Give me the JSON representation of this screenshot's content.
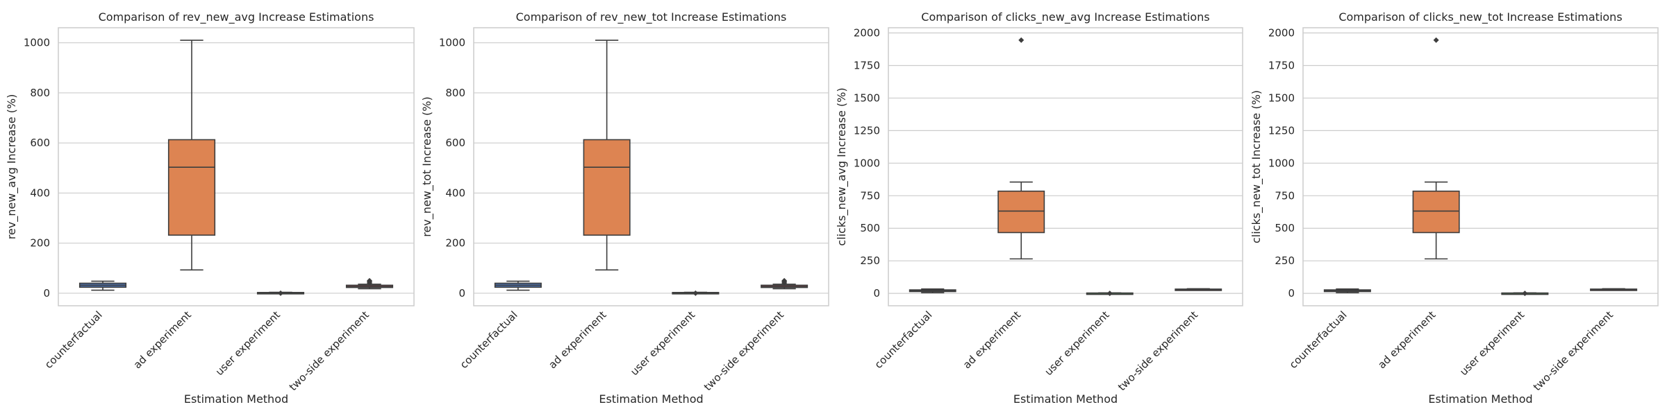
{
  "chart_data": [
    {
      "type": "box",
      "title": "Comparison of rev_new_avg Increase Estimations",
      "xlabel": "Estimation Method",
      "ylabel": "rev_new_avg Increase (%)",
      "categories": [
        "counterfactual",
        "ad experiment",
        "user experiment",
        "two-side experiment"
      ],
      "ylim": [
        -50,
        1060
      ],
      "yticks": [
        0,
        200,
        400,
        600,
        800,
        1000
      ],
      "grid": "y",
      "box_colors": [
        "#4c72b0",
        "#dd8452",
        "#55a868",
        "#c44e52"
      ],
      "boxes": [
        {
          "whislo": 12,
          "q1": 24,
          "med": 32,
          "q3": 40,
          "whishi": 48,
          "fliers": []
        },
        {
          "whislo": 93,
          "q1": 232,
          "med": 503,
          "q3": 613,
          "whishi": 1010,
          "fliers": []
        },
        {
          "whislo": 0,
          "q1": 1,
          "med": 2,
          "q3": 3,
          "whishi": 4,
          "fliers": [
            0
          ]
        },
        {
          "whislo": 18,
          "q1": 23,
          "med": 27,
          "q3": 32,
          "whishi": 36,
          "fliers": [
            41,
            46,
            50
          ]
        }
      ]
    },
    {
      "type": "box",
      "title": "Comparison of rev_new_tot Increase Estimations",
      "xlabel": "Estimation Method",
      "ylabel": "rev_new_tot Increase (%)",
      "categories": [
        "counterfactual",
        "ad experiment",
        "user experiment",
        "two-side experiment"
      ],
      "ylim": [
        -50,
        1060
      ],
      "yticks": [
        0,
        200,
        400,
        600,
        800,
        1000
      ],
      "grid": "y",
      "box_colors": [
        "#4c72b0",
        "#dd8452",
        "#55a868",
        "#c44e52"
      ],
      "boxes": [
        {
          "whislo": 12,
          "q1": 24,
          "med": 32,
          "q3": 40,
          "whishi": 48,
          "fliers": []
        },
        {
          "whislo": 93,
          "q1": 232,
          "med": 503,
          "q3": 613,
          "whishi": 1010,
          "fliers": []
        },
        {
          "whislo": 0,
          "q1": 1,
          "med": 2,
          "q3": 3,
          "whishi": 4,
          "fliers": [
            0
          ]
        },
        {
          "whislo": 18,
          "q1": 23,
          "med": 27,
          "q3": 32,
          "whishi": 36,
          "fliers": [
            41,
            46,
            50
          ]
        }
      ]
    },
    {
      "type": "box",
      "title": "Comparison of clicks_new_avg Increase Estimations",
      "xlabel": "Estimation Method",
      "ylabel": "clicks_new_avg Increase (%)",
      "categories": [
        "counterfactual",
        "ad experiment",
        "user experiment",
        "two-side experiment"
      ],
      "ylim": [
        -95,
        2040
      ],
      "yticks": [
        0,
        250,
        500,
        750,
        1000,
        1250,
        1500,
        1750,
        2000
      ],
      "grid": "y",
      "box_colors": [
        "#4c72b0",
        "#dd8452",
        "#55a868",
        "#c44e52"
      ],
      "boxes": [
        {
          "whislo": 5,
          "q1": 14,
          "med": 20,
          "q3": 27,
          "whishi": 34,
          "fliers": []
        },
        {
          "whislo": 265,
          "q1": 467,
          "med": 632,
          "q3": 785,
          "whishi": 855,
          "fliers": [
            1945
          ]
        },
        {
          "whislo": 0,
          "q1": 1,
          "med": 2,
          "q3": 3,
          "whishi": 4,
          "fliers": [
            0
          ]
        },
        {
          "whislo": 24,
          "q1": 28,
          "med": 30,
          "q3": 33,
          "whishi": 36,
          "fliers": []
        }
      ]
    },
    {
      "type": "box",
      "title": "Comparison of clicks_new_tot Increase Estimations",
      "xlabel": "Estimation Method",
      "ylabel": "clicks_new_tot Increase (%)",
      "categories": [
        "counterfactual",
        "ad experiment",
        "user experiment",
        "two-side experiment"
      ],
      "ylim": [
        -95,
        2040
      ],
      "yticks": [
        0,
        250,
        500,
        750,
        1000,
        1250,
        1500,
        1750,
        2000
      ],
      "grid": "y",
      "box_colors": [
        "#4c72b0",
        "#dd8452",
        "#55a868",
        "#c44e52"
      ],
      "boxes": [
        {
          "whislo": 5,
          "q1": 14,
          "med": 20,
          "q3": 27,
          "whishi": 34,
          "fliers": []
        },
        {
          "whislo": 265,
          "q1": 467,
          "med": 632,
          "q3": 785,
          "whishi": 855,
          "fliers": [
            1945
          ]
        },
        {
          "whislo": 0,
          "q1": 1,
          "med": 2,
          "q3": 3,
          "whishi": 4,
          "fliers": [
            0
          ]
        },
        {
          "whislo": 24,
          "q1": 28,
          "med": 30,
          "q3": 33,
          "whishi": 36,
          "fliers": []
        }
      ]
    }
  ]
}
